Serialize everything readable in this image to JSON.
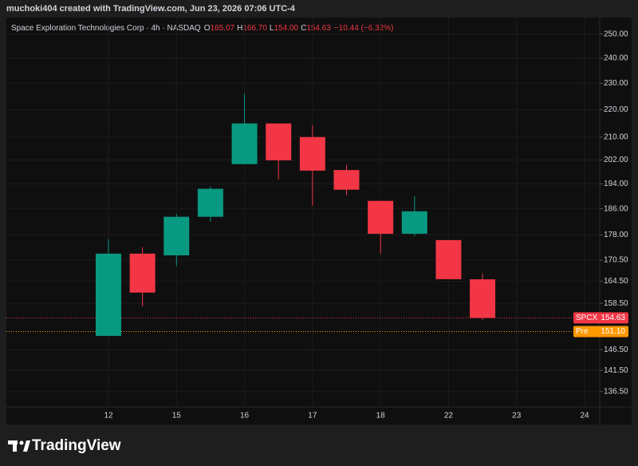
{
  "page_header": {
    "attribution": "muchoki404 created with TradingView.com, Jun 23, 2026 07:06 UTC-4",
    "brand": "TradingView"
  },
  "chart_data": {
    "type": "candlestick",
    "legend": {
      "symbol": "Space Exploration Technologies Corp · 4h · NASDAQ",
      "open_key": "O",
      "open": "165.07",
      "high_key": "H",
      "high": "166.70",
      "low_key": "L",
      "low": "154.00",
      "close_key": "C",
      "close": "154.63",
      "change": "−10.44 (−6.32%)"
    },
    "categories": [
      "12",
      null,
      "15",
      null,
      "16",
      null,
      "17",
      null,
      "18",
      null,
      "22",
      null,
      "23",
      null,
      "24"
    ],
    "open": [
      150.0,
      172.4,
      171.9,
      183.5,
      200.6,
      214.9,
      210.0,
      198.6,
      188.5,
      178.3,
      176.4,
      165.07,
      null,
      null,
      null
    ],
    "high": [
      176.7,
      174.3,
      184.4,
      193.2,
      225.9,
      214.9,
      214.3,
      200.3,
      188.5,
      190.0,
      176.4,
      166.7,
      null,
      null,
      null
    ],
    "low": [
      150.0,
      157.7,
      168.8,
      182.0,
      200.6,
      195.5,
      187.0,
      190.3,
      172.4,
      177.6,
      165.1,
      154.0,
      null,
      null,
      null
    ],
    "close": [
      172.4,
      161.4,
      183.5,
      192.4,
      214.9,
      201.9,
      198.4,
      192.1,
      178.3,
      185.2,
      165.1,
      154.63,
      null,
      null,
      null
    ],
    "up_color": "#089981",
    "down_color": "#f23645",
    "log_scale": true,
    "grid": true,
    "ylim": [
      133,
      255
    ],
    "yticks": [
      {
        "value": 250,
        "label": "250.00"
      },
      {
        "value": 240,
        "label": "240.00"
      },
      {
        "value": 230,
        "label": "230.00"
      },
      {
        "value": 220,
        "label": "220.00"
      },
      {
        "value": 210,
        "label": "210.00"
      },
      {
        "value": 202,
        "label": "202.00"
      },
      {
        "value": 194,
        "label": "194.00"
      },
      {
        "value": 186,
        "label": "186.00"
      },
      {
        "value": 178,
        "label": "178.00"
      },
      {
        "value": 170.5,
        "label": "170.50"
      },
      {
        "value": 164.5,
        "label": "164.50"
      },
      {
        "value": 158.5,
        "label": "158.50"
      },
      {
        "value": 146.5,
        "label": "146.50"
      },
      {
        "value": 141.5,
        "label": "141.50"
      },
      {
        "value": 136.5,
        "label": "136.50"
      }
    ],
    "price_lines": [
      {
        "label": "SPCX",
        "value": 154.63,
        "color": "#f23645"
      },
      {
        "label": "Pre",
        "value": 151.1,
        "value_label": "151.10",
        "color": "#ff9800"
      }
    ]
  }
}
